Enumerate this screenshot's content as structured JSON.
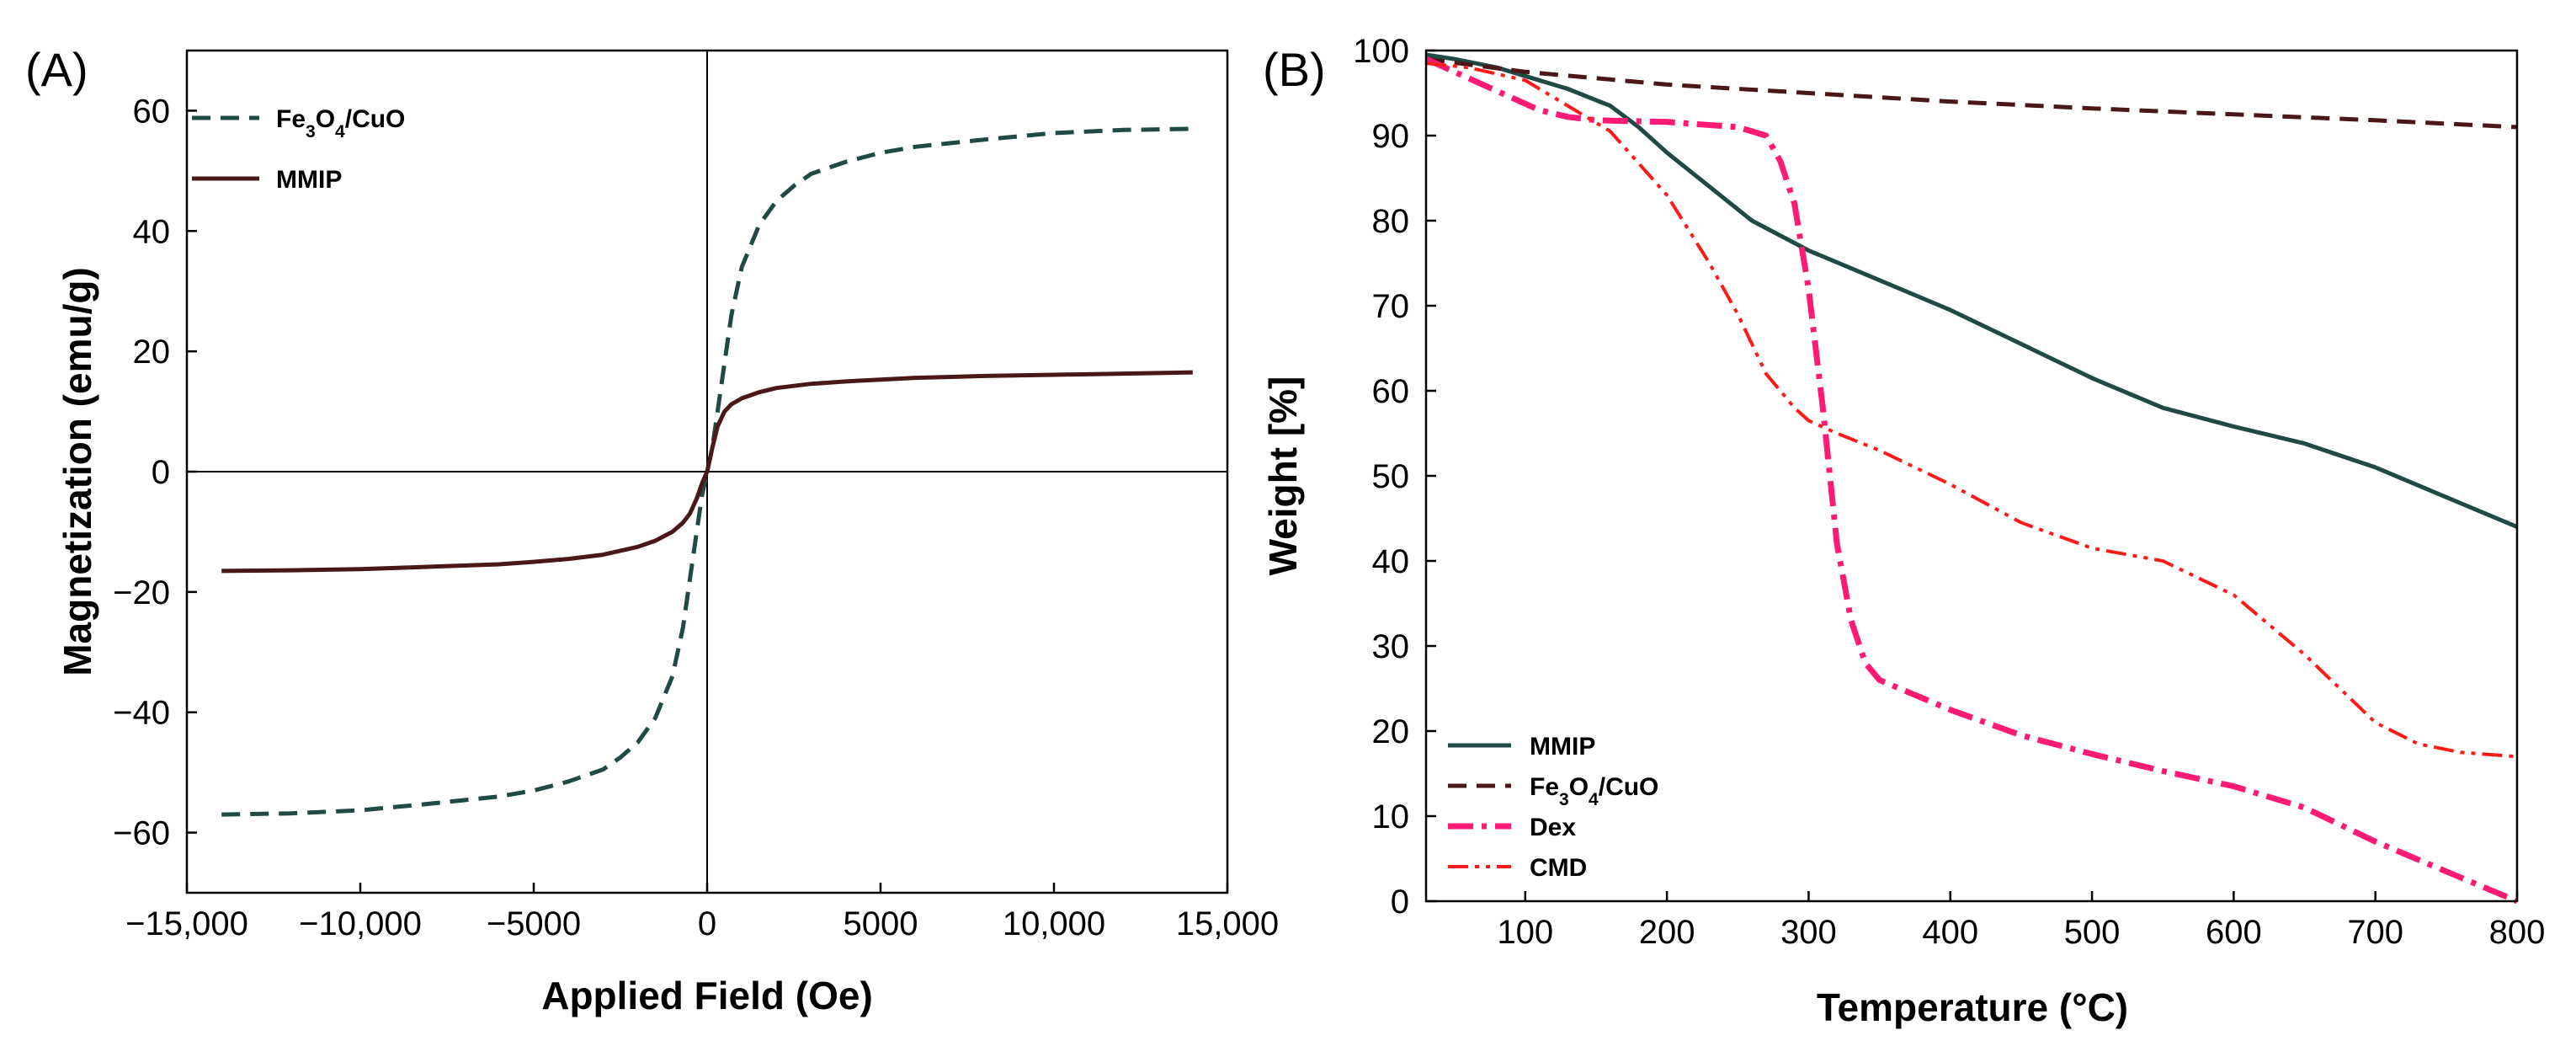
{
  "chart_data": [
    {
      "type": "line",
      "panel_label": "(A)",
      "xlabel": "Applied Field (Oe)",
      "ylabel": "Magnetization (emu/g)",
      "xlim": [
        -15000,
        15000
      ],
      "ylim": [
        -70,
        70
      ],
      "xticks": [
        -15000,
        -10000,
        -5000,
        0,
        5000,
        10000,
        15000
      ],
      "xtick_labels": [
        "−15,000",
        "−10,000",
        "−5000",
        "0",
        "5000",
        "10,000",
        "15,000"
      ],
      "yticks": [
        -60,
        -40,
        -20,
        0,
        20,
        40,
        60
      ],
      "ytick_labels": [
        "−60",
        "−40",
        "−20",
        "0",
        "20",
        "40",
        "60"
      ],
      "legend_position": "top-left",
      "series": [
        {
          "name": "Fe3O4/CuO",
          "legend_parts": [
            "Fe",
            "3",
            "O",
            "4",
            "/CuO"
          ],
          "color": "#1f4a45",
          "style": "dashed",
          "x": [
            -14000,
            -12000,
            -10000,
            -8000,
            -6000,
            -5000,
            -4000,
            -3000,
            -2500,
            -2000,
            -1500,
            -1000,
            -700,
            -500,
            -300,
            -150,
            0,
            150,
            300,
            500,
            700,
            1000,
            1500,
            2000,
            2500,
            3000,
            4000,
            5000,
            6000,
            8000,
            10000,
            12000,
            14000
          ],
          "y": [
            -57,
            -56.8,
            -56.3,
            -55.2,
            -54,
            -53,
            -51.5,
            -49.5,
            -47.5,
            -45,
            -41,
            -34,
            -26,
            -18,
            -10,
            -4,
            0,
            4,
            10,
            18,
            26,
            34,
            41,
            45,
            47.5,
            49.5,
            51.5,
            53,
            54,
            55.2,
            56.3,
            56.8,
            57
          ]
        },
        {
          "name": "MMIP",
          "legend_parts": [
            "MMIP"
          ],
          "color": "#4a1818",
          "style": "solid",
          "x": [
            -14000,
            -12000,
            -10000,
            -8000,
            -6000,
            -5000,
            -4000,
            -3000,
            -2000,
            -1500,
            -1000,
            -700,
            -500,
            -300,
            -150,
            0,
            150,
            300,
            500,
            700,
            1000,
            1500,
            2000,
            3000,
            4000,
            5000,
            6000,
            8000,
            10000,
            12000,
            14000
          ],
          "y": [
            -16.5,
            -16.4,
            -16.2,
            -15.8,
            -15.4,
            -15,
            -14.5,
            -13.8,
            -12.5,
            -11.5,
            -10,
            -8.5,
            -7,
            -4.5,
            -2,
            0,
            4,
            7.5,
            10,
            11.2,
            12.2,
            13.2,
            13.9,
            14.6,
            15,
            15.3,
            15.6,
            15.9,
            16.1,
            16.3,
            16.5
          ]
        }
      ]
    },
    {
      "type": "line",
      "panel_label": "(B)",
      "xlabel": "Temperature (°C)",
      "ylabel": "Weight [%]",
      "xlim": [
        30,
        800
      ],
      "ylim": [
        0,
        100
      ],
      "xticks": [
        100,
        200,
        300,
        400,
        500,
        600,
        700,
        800
      ],
      "xtick_labels": [
        "100",
        "200",
        "300",
        "400",
        "500",
        "600",
        "700",
        "800"
      ],
      "yticks": [
        0,
        10,
        20,
        30,
        40,
        50,
        60,
        70,
        80,
        90,
        100
      ],
      "ytick_labels": [
        "0",
        "10",
        "20",
        "30",
        "40",
        "50",
        "60",
        "70",
        "80",
        "90",
        "100"
      ],
      "legend_position": "bottom-left",
      "series": [
        {
          "name": "MMIP",
          "legend_parts": [
            "MMIP"
          ],
          "color": "#1f4a45",
          "style": "solid",
          "x": [
            30,
            50,
            80,
            100,
            130,
            160,
            180,
            200,
            230,
            260,
            300,
            350,
            400,
            450,
            500,
            550,
            600,
            650,
            700,
            750,
            800
          ],
          "y": [
            99.5,
            99,
            98,
            97,
            95.5,
            93.5,
            91,
            88,
            84,
            80,
            76.5,
            73,
            69.5,
            65.5,
            61.5,
            58,
            55.8,
            53.8,
            51,
            47.5,
            44
          ]
        },
        {
          "name": "Fe3O4/CuO",
          "legend_parts": [
            "Fe",
            "3",
            "O",
            "4",
            "/CuO"
          ],
          "color": "#4a1818",
          "style": "dashed",
          "x": [
            30,
            100,
            200,
            300,
            400,
            500,
            600,
            700,
            800
          ],
          "y": [
            99,
            97.5,
            96,
            95,
            94,
            93.2,
            92.5,
            91.8,
            91
          ]
        },
        {
          "name": "Dex",
          "legend_parts": [
            "Dex"
          ],
          "color": "#ff1a75",
          "style": "dashdot",
          "x": [
            30,
            50,
            70,
            90,
            110,
            130,
            150,
            200,
            250,
            270,
            280,
            290,
            300,
            310,
            320,
            330,
            340,
            350,
            400,
            450,
            500,
            550,
            600,
            650,
            700,
            750,
            800
          ],
          "y": [
            99,
            97.5,
            96,
            94.5,
            93,
            92.2,
            91.8,
            91.6,
            91,
            90,
            87,
            82,
            72,
            58,
            42,
            33,
            28,
            26,
            22.5,
            19.5,
            17.3,
            15.3,
            13.5,
            11,
            7,
            3.5,
            0
          ]
        },
        {
          "name": "CMD",
          "legend_parts": [
            "CMD"
          ],
          "color": "#ff1a1a",
          "style": "dashdotdot",
          "x": [
            30,
            60,
            100,
            130,
            160,
            200,
            230,
            250,
            270,
            290,
            300,
            320,
            350,
            400,
            450,
            500,
            550,
            600,
            650,
            700,
            730,
            760,
            800
          ],
          "y": [
            98.5,
            98,
            96.5,
            93.5,
            90.5,
            83,
            75,
            69,
            62,
            58,
            56.5,
            55,
            53,
            49,
            44.5,
            41.5,
            40,
            36,
            29,
            21,
            18.5,
            17.5,
            17
          ]
        }
      ]
    }
  ]
}
